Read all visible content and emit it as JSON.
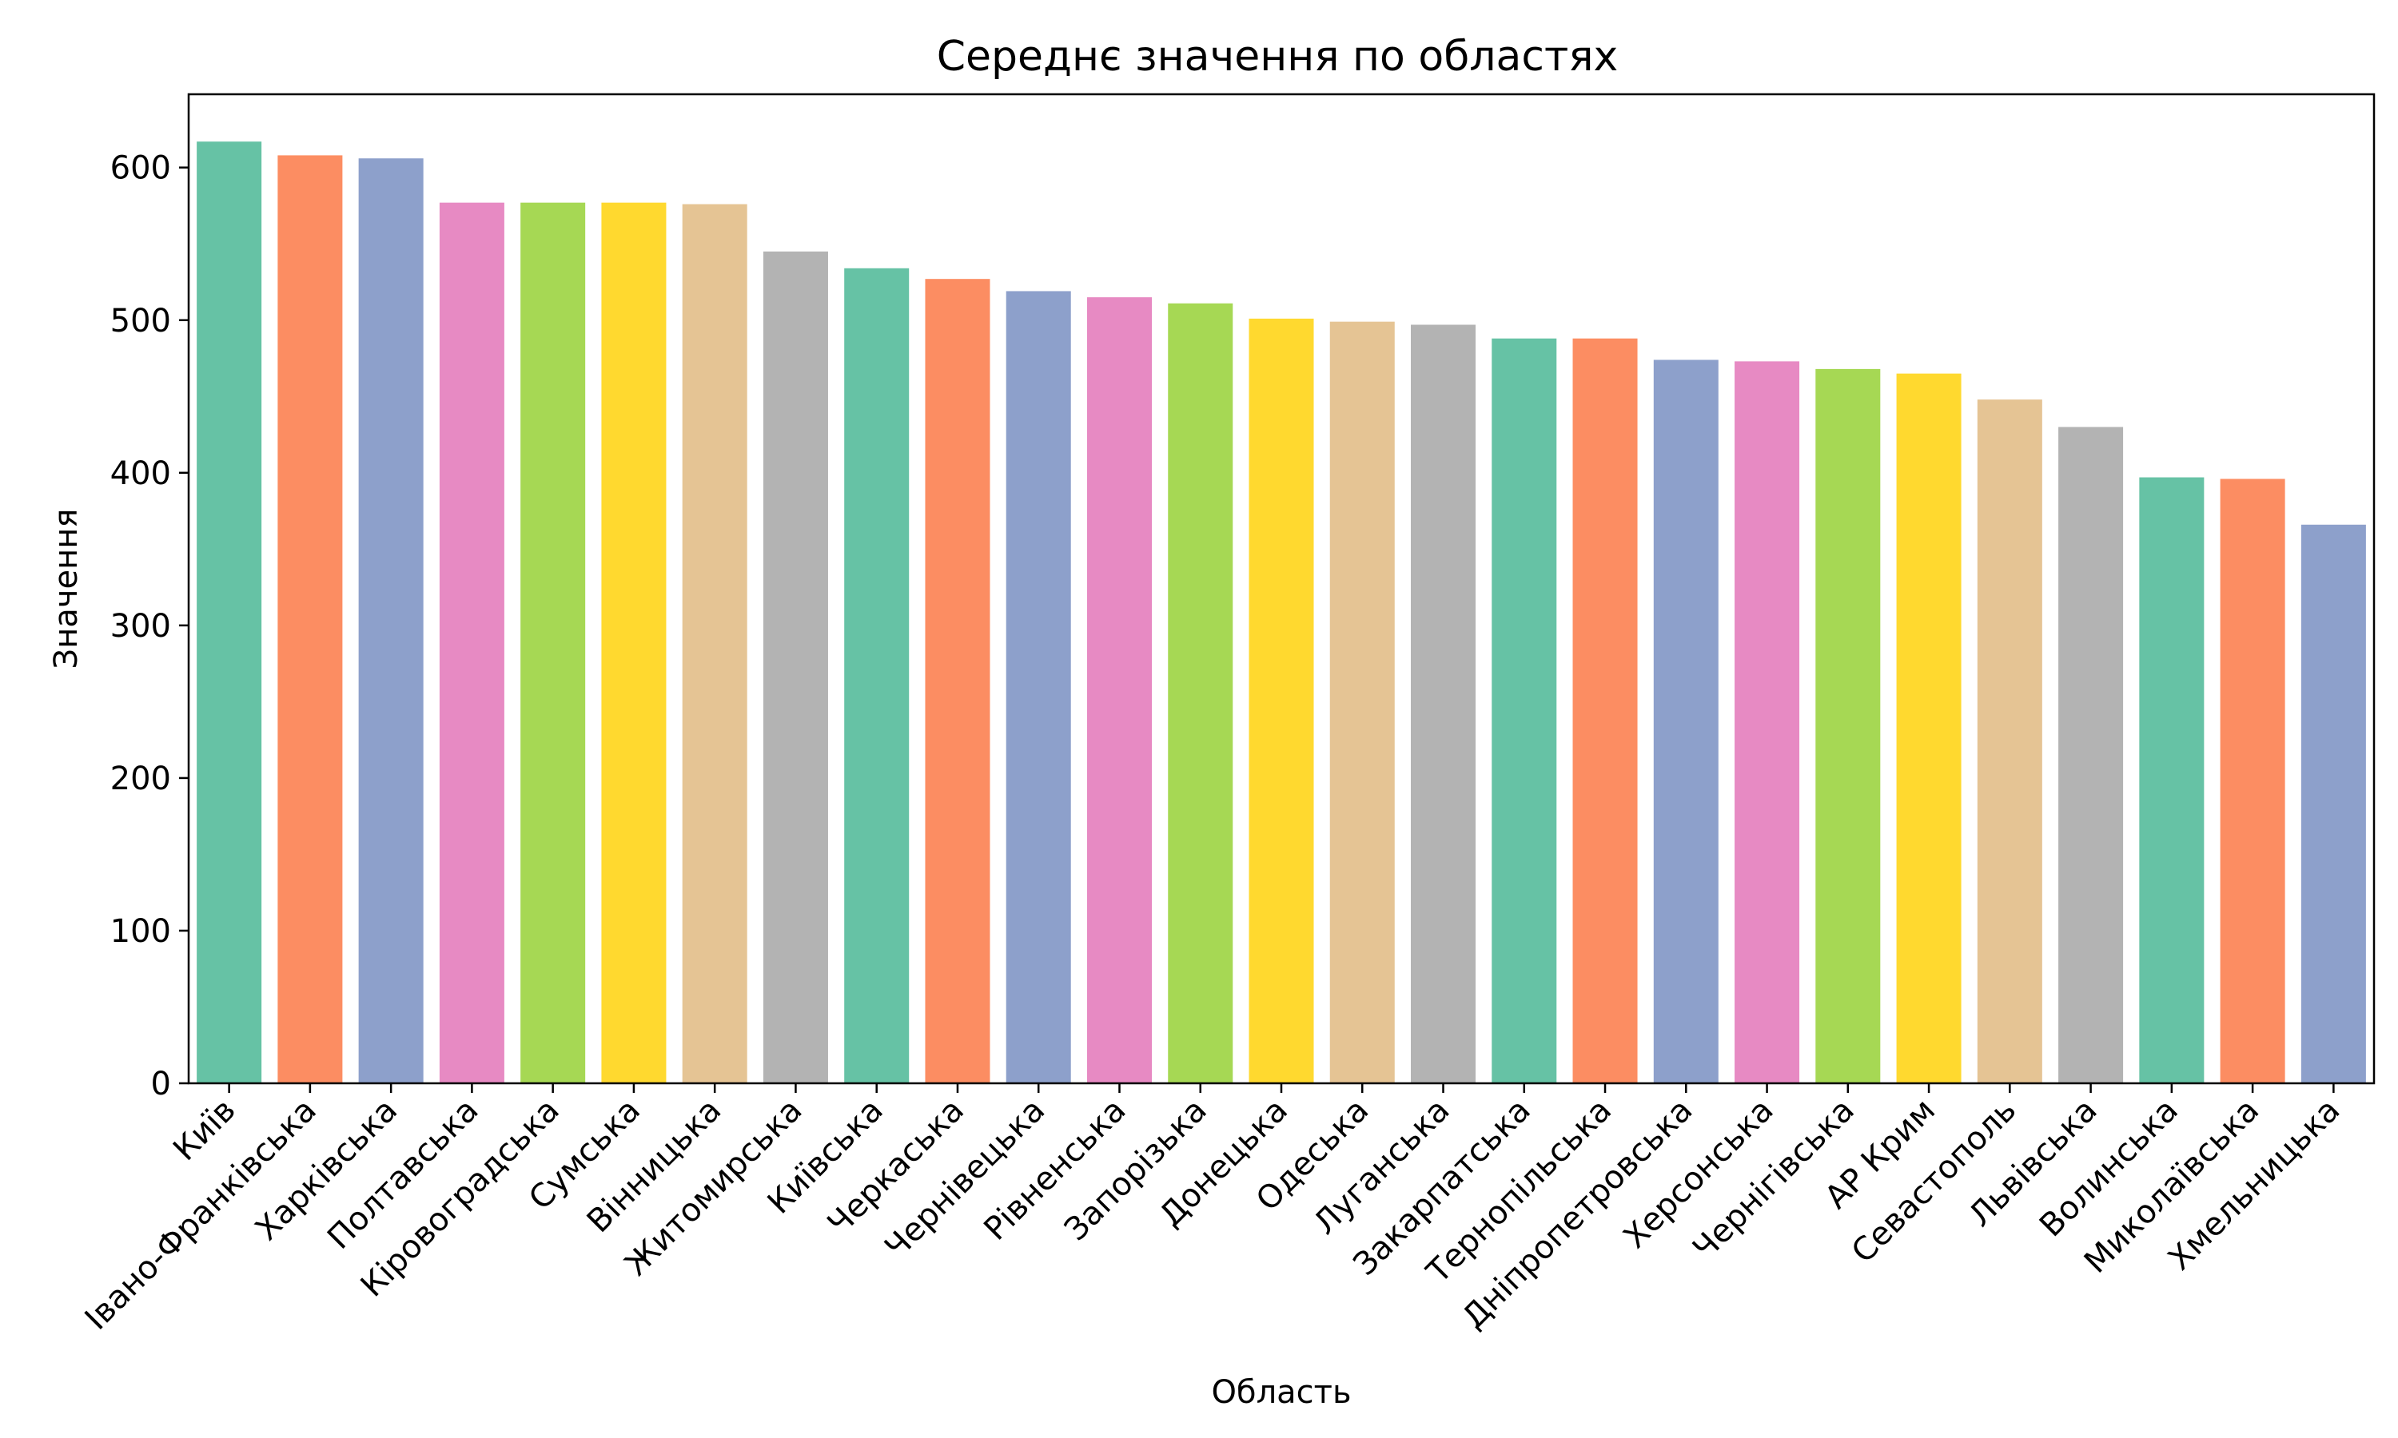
{
  "chart_data": {
    "type": "bar",
    "title": "Середнє значення по областях",
    "xlabel": "Область",
    "ylabel": "Значення",
    "ylim": [
      0,
      648
    ],
    "yticks": [
      0,
      100,
      200,
      300,
      400,
      500,
      600
    ],
    "grid": false,
    "legend": "none",
    "categories": [
      "Київ",
      "Івано-Франківська",
      "Харківська",
      "Полтавська",
      "Кіровоградська",
      "Сумська",
      "Вінницька",
      "Житомирська",
      "Київська",
      "Черкаська",
      "Чернівецька",
      "Рівненська",
      "Запорізька",
      "Донецька",
      "Одеська",
      "Луганська",
      "Закарпатська",
      "Тернопільська",
      "Дніпропетровська",
      "Херсонська",
      "Чернігівська",
      "АР Крим",
      "Севастополь",
      "Львівська",
      "Волинська",
      "Миколаївська",
      "Хмельницька"
    ],
    "values": [
      617,
      608,
      606,
      577,
      577,
      577,
      576,
      545,
      534,
      527,
      519,
      515,
      511,
      501,
      499,
      497,
      488,
      488,
      474,
      473,
      468,
      465,
      448,
      430,
      397,
      396,
      366
    ],
    "colors": [
      "#66c2a5",
      "#fc8d62",
      "#8da0cb",
      "#e78ac3",
      "#a6d854",
      "#ffd92f",
      "#e5c494",
      "#b3b3b3"
    ]
  }
}
